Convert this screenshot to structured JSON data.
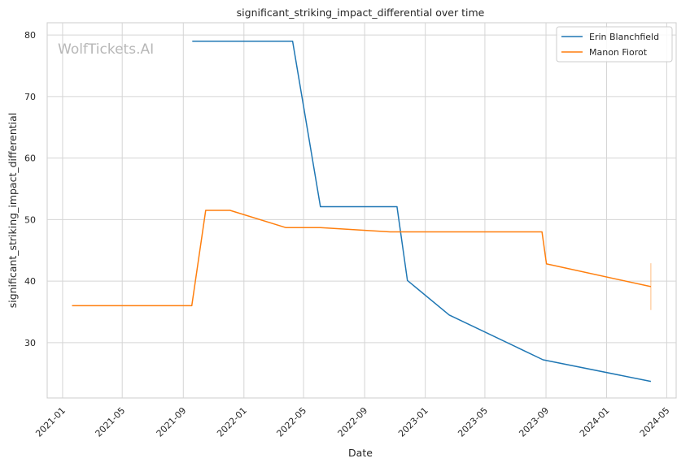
{
  "chart_data": {
    "type": "line",
    "title": "significant_striking_impact_differential over time",
    "xlabel": "Date",
    "ylabel": "significant_striking_impact_differential",
    "watermark": "WolfTickets.AI",
    "grid": true,
    "legend_position": "top-right",
    "xlim": [
      "2020-12-01",
      "2024-05-20"
    ],
    "ylim": [
      21,
      82
    ],
    "x_ticks": [
      "2021-01",
      "2021-05",
      "2021-09",
      "2022-01",
      "2022-05",
      "2022-09",
      "2023-01",
      "2023-05",
      "2023-09",
      "2024-01",
      "2024-05"
    ],
    "y_ticks": [
      30,
      40,
      50,
      60,
      70,
      80
    ],
    "series": [
      {
        "name": "Erin Blanchfield",
        "color": "#1f77b4",
        "points": [
          {
            "x": "2021-09-19",
            "y": 79.0
          },
          {
            "x": "2022-04-09",
            "y": 79.0
          },
          {
            "x": "2022-06-04",
            "y": 52.1
          },
          {
            "x": "2022-11-05",
            "y": 52.1
          },
          {
            "x": "2022-11-26",
            "y": 40.1
          },
          {
            "x": "2023-02-18",
            "y": 34.5
          },
          {
            "x": "2023-08-26",
            "y": 27.2
          },
          {
            "x": "2024-03-30",
            "y": 23.7
          }
        ]
      },
      {
        "name": "Manon Fiorot",
        "color": "#ff7f0e",
        "points": [
          {
            "x": "2021-01-20",
            "y": 36.0
          },
          {
            "x": "2021-09-18",
            "y": 36.0
          },
          {
            "x": "2021-10-16",
            "y": 51.5
          },
          {
            "x": "2021-12-04",
            "y": 51.5
          },
          {
            "x": "2022-03-26",
            "y": 48.7
          },
          {
            "x": "2022-06-04",
            "y": 48.7
          },
          {
            "x": "2022-10-22",
            "y": 48.0
          },
          {
            "x": "2023-08-24",
            "y": 48.0
          },
          {
            "x": "2023-09-02",
            "y": 42.8
          },
          {
            "x": "2024-03-30",
            "y": 39.1
          }
        ],
        "error_band": {
          "x": "2024-03-30",
          "low": 35.3,
          "high": 42.9
        }
      }
    ]
  }
}
